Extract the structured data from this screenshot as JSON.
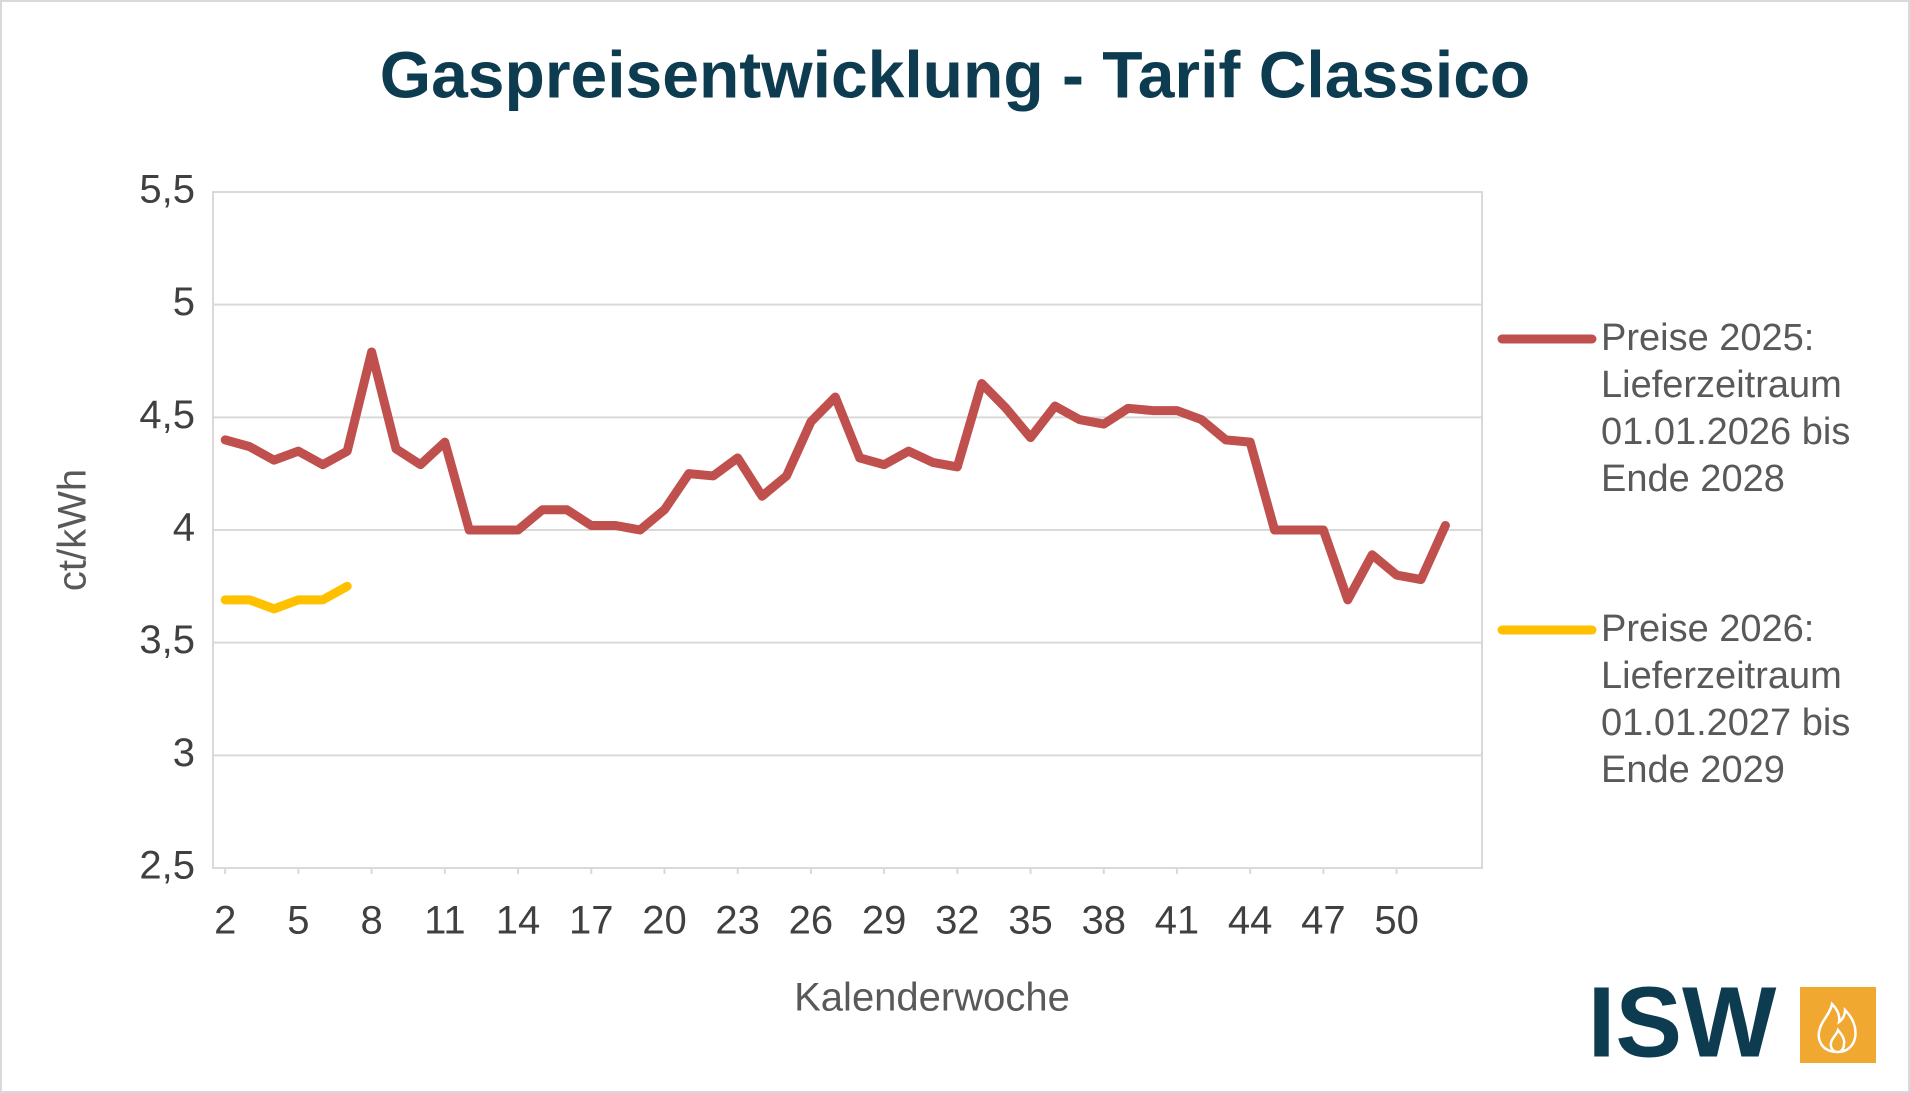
{
  "chart_data": {
    "type": "line",
    "title": "Gaspreisentwicklung - Tarif Classico",
    "x_label": "Kalenderwoche",
    "y_label": "ct/kWh",
    "x": [
      2,
      3,
      4,
      5,
      6,
      7,
      8,
      9,
      10,
      11,
      12,
      13,
      14,
      15,
      16,
      17,
      18,
      19,
      20,
      21,
      22,
      23,
      24,
      25,
      26,
      27,
      28,
      29,
      30,
      31,
      32,
      33,
      34,
      35,
      36,
      37,
      38,
      39,
      40,
      41,
      42,
      43,
      44,
      45,
      46,
      47,
      48,
      49,
      50,
      51,
      52
    ],
    "xlim": [
      1.5,
      53.5
    ],
    "xticks": [
      2,
      5,
      8,
      11,
      14,
      17,
      20,
      23,
      26,
      29,
      32,
      35,
      38,
      41,
      44,
      47,
      50
    ],
    "ylim": [
      2.5,
      5.5
    ],
    "yticks": [
      {
        "value": 2.5,
        "label": "2,5"
      },
      3,
      {
        "value": 3.5,
        "label": "3,5"
      },
      4,
      {
        "value": 4.5,
        "label": "4,5"
      },
      5,
      {
        "value": 5.5,
        "label": "5,5"
      }
    ],
    "grid": true,
    "legend": "right",
    "series": [
      {
        "name": "Preise 2025: Lieferzeitraum 01.01.2026 bis Ende 2028",
        "color": "#c0504d",
        "values": [
          4.4,
          4.37,
          4.31,
          4.35,
          4.29,
          4.35,
          4.79,
          4.36,
          4.29,
          4.39,
          4.0,
          4.0,
          4.0,
          4.09,
          4.09,
          4.02,
          4.02,
          4.0,
          4.09,
          4.25,
          4.24,
          4.32,
          4.15,
          4.24,
          4.48,
          4.59,
          4.32,
          4.29,
          4.35,
          4.3,
          4.28,
          4.65,
          4.54,
          4.41,
          4.55,
          4.49,
          4.47,
          4.54,
          4.53,
          4.53,
          4.49,
          4.4,
          4.39,
          4.0,
          4.0,
          4.0,
          3.69,
          3.89,
          3.8,
          3.78,
          4.02
        ]
      },
      {
        "name": "Preise 2026: Lieferzeitraum 01.01.2027 bis Ende 2029",
        "color": "#ffc000",
        "values": [
          3.69,
          3.69,
          3.65,
          3.69,
          3.69,
          3.75,
          null,
          null,
          null,
          null,
          null,
          null,
          null,
          null,
          null,
          null,
          null,
          null,
          null,
          null,
          null,
          null,
          null,
          null,
          null,
          null,
          null,
          null,
          null,
          null,
          null,
          null,
          null,
          null,
          null,
          null,
          null,
          null,
          null,
          null,
          null,
          null,
          null,
          null,
          null,
          null,
          null,
          null,
          null,
          null,
          null
        ]
      }
    ],
    "logo": "ISW"
  }
}
